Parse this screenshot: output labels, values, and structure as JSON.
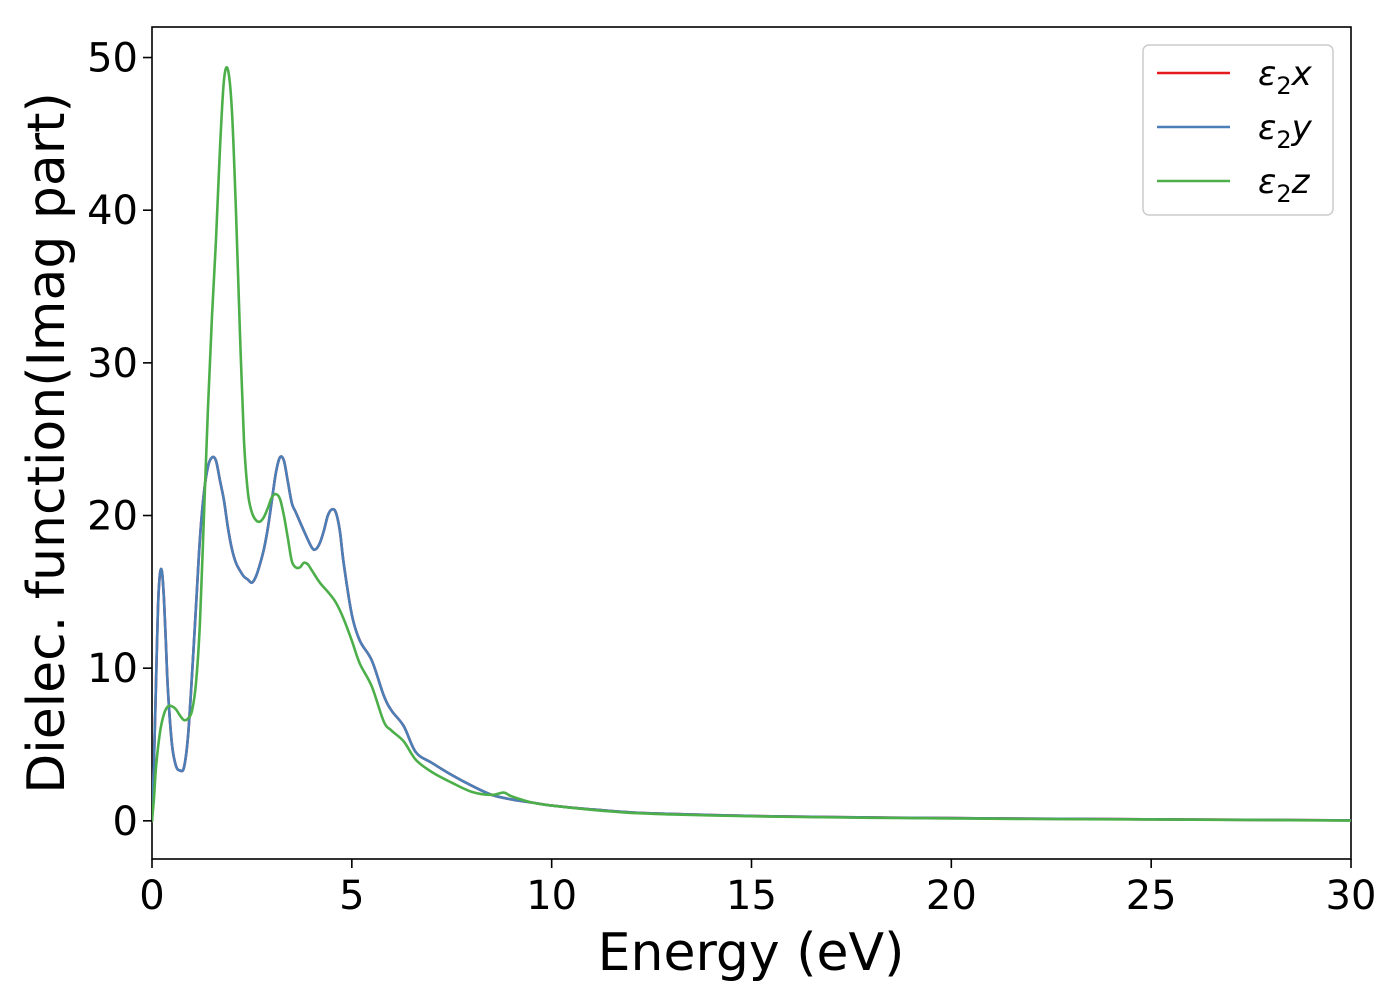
{
  "chart_data": {
    "type": "line",
    "title": "",
    "xlabel": "Energy (eV)",
    "ylabel": "Dielec. function(Imag part)",
    "xlim": [
      0,
      30
    ],
    "ylim": [
      -2.5,
      52
    ],
    "xticks": [
      0,
      5,
      10,
      15,
      20,
      25,
      30
    ],
    "yticks": [
      0,
      10,
      20,
      30,
      40,
      50
    ],
    "grid": false,
    "legend_position": "top-right",
    "series": [
      {
        "name": "ε2x",
        "legend_symbol": "ε",
        "legend_subscript": "2",
        "legend_var": "x",
        "color": "#e41a1c",
        "x": [
          0,
          0.05,
          0.1,
          0.15,
          0.2,
          0.25,
          0.3,
          0.35,
          0.4,
          0.5,
          0.6,
          0.7,
          0.8,
          0.9,
          1.0,
          1.1,
          1.2,
          1.3,
          1.4,
          1.5,
          1.6,
          1.7,
          1.8,
          1.9,
          2.0,
          2.1,
          2.2,
          2.3,
          2.4,
          2.5,
          2.6,
          2.7,
          2.8,
          2.9,
          3.0,
          3.1,
          3.2,
          3.3,
          3.4,
          3.5,
          3.6,
          3.8,
          4.0,
          4.1,
          4.2,
          4.3,
          4.4,
          4.5,
          4.6,
          4.7,
          4.8,
          5.0,
          5.2,
          5.5,
          5.8,
          6.0,
          6.3,
          6.6,
          7.0,
          7.5,
          8.0,
          8.5,
          9.0,
          9.5,
          10.0,
          11.0,
          12.0,
          13.0,
          14.0,
          15.0,
          16.0,
          18.0,
          20.0,
          22.0,
          25.0,
          28.0,
          30.0
        ],
        "y": [
          0,
          4,
          9,
          14,
          16.2,
          16.3,
          14.5,
          11.5,
          8.5,
          5.0,
          3.6,
          3.3,
          3.5,
          5.5,
          9.5,
          14.0,
          18.5,
          21.5,
          23.2,
          23.8,
          23.6,
          22.3,
          21.0,
          19.2,
          17.8,
          16.9,
          16.4,
          16.0,
          15.8,
          15.6,
          16.0,
          16.8,
          17.8,
          19.2,
          21.0,
          22.8,
          23.8,
          23.6,
          22.2,
          20.8,
          20.2,
          19.0,
          17.9,
          17.8,
          18.2,
          19.0,
          20.0,
          20.4,
          20.2,
          19.0,
          16.8,
          13.5,
          11.8,
          10.5,
          8.2,
          7.2,
          6.2,
          4.5,
          3.8,
          3.0,
          2.3,
          1.7,
          1.4,
          1.2,
          1.0,
          0.75,
          0.55,
          0.45,
          0.38,
          0.32,
          0.28,
          0.22,
          0.18,
          0.14,
          0.1,
          0.06,
          0.03
        ]
      },
      {
        "name": "ε2y",
        "legend_symbol": "ε",
        "legend_subscript": "2",
        "legend_var": "y",
        "color": "#4a7fb8",
        "x": [
          0,
          0.05,
          0.1,
          0.15,
          0.2,
          0.25,
          0.3,
          0.35,
          0.4,
          0.5,
          0.6,
          0.7,
          0.8,
          0.9,
          1.0,
          1.1,
          1.2,
          1.3,
          1.4,
          1.5,
          1.6,
          1.7,
          1.8,
          1.9,
          2.0,
          2.1,
          2.2,
          2.3,
          2.4,
          2.5,
          2.6,
          2.7,
          2.8,
          2.9,
          3.0,
          3.1,
          3.2,
          3.3,
          3.4,
          3.5,
          3.6,
          3.8,
          4.0,
          4.1,
          4.2,
          4.3,
          4.4,
          4.5,
          4.6,
          4.7,
          4.8,
          5.0,
          5.2,
          5.5,
          5.8,
          6.0,
          6.3,
          6.6,
          7.0,
          7.5,
          8.0,
          8.5,
          9.0,
          9.5,
          10.0,
          11.0,
          12.0,
          13.0,
          14.0,
          15.0,
          16.0,
          18.0,
          20.0,
          22.0,
          25.0,
          28.0,
          30.0
        ],
        "y": [
          0,
          4,
          9,
          14,
          16.2,
          16.3,
          14.5,
          11.5,
          8.5,
          5.0,
          3.6,
          3.3,
          3.5,
          5.5,
          9.5,
          14.0,
          18.5,
          21.5,
          23.2,
          23.8,
          23.6,
          22.3,
          21.0,
          19.2,
          17.8,
          16.9,
          16.4,
          16.0,
          15.8,
          15.6,
          16.0,
          16.8,
          17.8,
          19.2,
          21.0,
          22.8,
          23.8,
          23.6,
          22.2,
          20.8,
          20.2,
          19.0,
          17.9,
          17.8,
          18.2,
          19.0,
          20.0,
          20.4,
          20.2,
          19.0,
          16.8,
          13.5,
          11.8,
          10.5,
          8.2,
          7.2,
          6.2,
          4.5,
          3.8,
          3.0,
          2.3,
          1.7,
          1.4,
          1.2,
          1.0,
          0.75,
          0.55,
          0.45,
          0.38,
          0.32,
          0.28,
          0.22,
          0.18,
          0.14,
          0.1,
          0.06,
          0.03
        ]
      },
      {
        "name": "ε2z",
        "legend_symbol": "ε",
        "legend_subscript": "2",
        "legend_var": "z",
        "color": "#4daf4a",
        "x": [
          0,
          0.05,
          0.1,
          0.2,
          0.3,
          0.4,
          0.5,
          0.6,
          0.7,
          0.8,
          0.9,
          1.0,
          1.1,
          1.2,
          1.3,
          1.4,
          1.5,
          1.6,
          1.7,
          1.8,
          1.9,
          2.0,
          2.1,
          2.2,
          2.3,
          2.4,
          2.5,
          2.6,
          2.7,
          2.8,
          2.9,
          3.0,
          3.1,
          3.2,
          3.3,
          3.4,
          3.5,
          3.6,
          3.7,
          3.8,
          3.9,
          4.0,
          4.2,
          4.4,
          4.6,
          4.8,
          5.0,
          5.2,
          5.5,
          5.8,
          6.0,
          6.3,
          6.6,
          7.0,
          7.5,
          8.0,
          8.5,
          8.8,
          9.0,
          9.5,
          10.0,
          11.0,
          12.0,
          13.0,
          14.0,
          15.0,
          16.0,
          18.0,
          20.0,
          22.0,
          25.0,
          28.0,
          30.0
        ],
        "y": [
          0,
          1.5,
          3.5,
          5.8,
          7.0,
          7.5,
          7.5,
          7.3,
          6.9,
          6.6,
          6.7,
          7.2,
          9.0,
          13.0,
          20.0,
          27.0,
          33.0,
          38.0,
          44.0,
          48.5,
          49.2,
          46.5,
          40.0,
          32.0,
          25.0,
          21.5,
          20.2,
          19.7,
          19.6,
          19.9,
          20.5,
          21.2,
          21.4,
          21.1,
          20.0,
          18.5,
          17.0,
          16.6,
          16.6,
          16.9,
          16.8,
          16.4,
          15.6,
          15.0,
          14.3,
          13.2,
          11.8,
          10.3,
          8.8,
          6.5,
          5.9,
          5.2,
          4.0,
          3.2,
          2.5,
          1.9,
          1.7,
          1.85,
          1.6,
          1.2,
          1.0,
          0.72,
          0.52,
          0.42,
          0.35,
          0.3,
          0.26,
          0.2,
          0.16,
          0.12,
          0.09,
          0.05,
          0.02
        ]
      }
    ]
  }
}
